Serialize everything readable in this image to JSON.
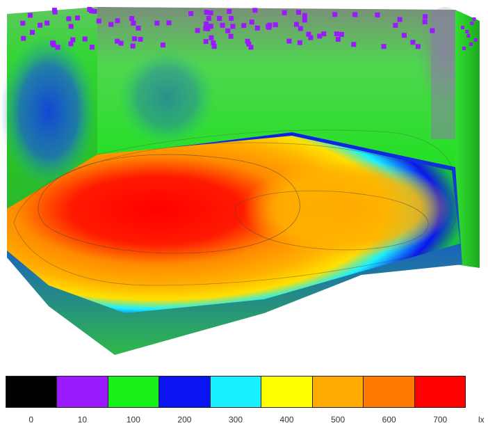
{
  "legend": {
    "colors": [
      "#000000",
      "#9a19ff",
      "#19f019",
      "#0a14f0",
      "#19f0ff",
      "#ffff00",
      "#ffaa00",
      "#ff7a00",
      "#ff0000"
    ],
    "tick_labels": [
      "0",
      "10",
      "100",
      "200",
      "300",
      "400",
      "500",
      "600",
      "700"
    ],
    "unit_label": "lx"
  },
  "scene": {
    "floor_gradient": [
      "#0a14f0",
      "#19f0ff",
      "#ffff00",
      "#ffaa00",
      "#ff0000"
    ],
    "wall_color": "#3fdc3f",
    "marker_color": "#9a19ff",
    "wall_dark_color": "#1030d0"
  }
}
